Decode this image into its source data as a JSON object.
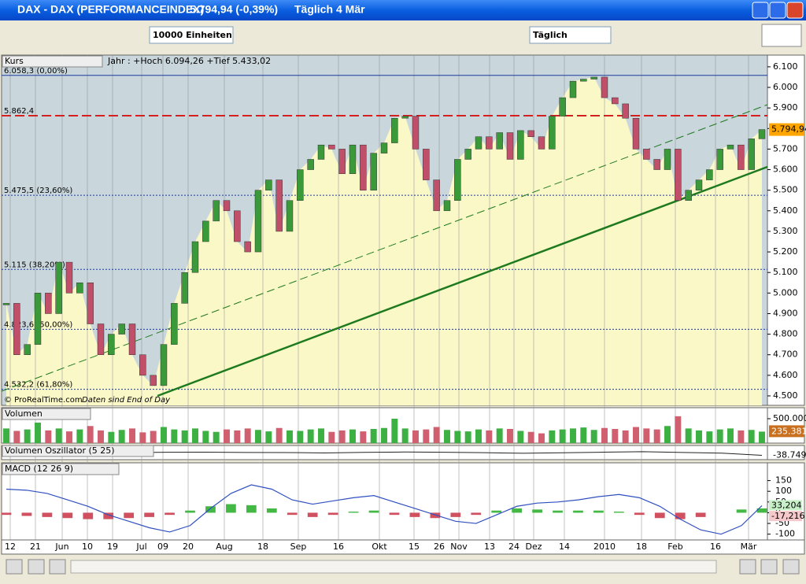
{
  "window": {
    "title": "DAX - DAX (PERFORMANCEINDEX)",
    "quote": "5.794,94 (-0,39%)",
    "interval": "Täglich",
    "date": "4 Mär"
  },
  "toolbar": {
    "units": "10000 Einheiten",
    "period": "Täglich"
  },
  "x_axis": {
    "labels": [
      "12",
      "21",
      "Jun",
      "10",
      "19",
      "Jul",
      "09",
      "20",
      "Aug",
      "18",
      "Sep",
      "16",
      "Okt",
      "15",
      "26",
      "Nov",
      "13",
      "24",
      "Dez",
      "14",
      "2010",
      "18",
      "Feb",
      "16",
      "Mär"
    ]
  },
  "chart_data": [
    {
      "type": "candlestick",
      "title": "Kurs",
      "subtitle": "Jahr : +Hoch 6.094,26 +Tief 5.433,02",
      "source": "© ProRealTime.com",
      "note": "Daten sind End of Day",
      "values": [
        4950,
        4700,
        4750,
        5000,
        4900,
        5150,
        5000,
        5050,
        4850,
        4700,
        4800,
        4850,
        4700,
        4600,
        4550,
        4750,
        4950,
        5100,
        5250,
        5350,
        5450,
        5400,
        5250,
        5200,
        5500,
        5550,
        5300,
        5450,
        5600,
        5650,
        5720,
        5700,
        5580,
        5720,
        5500,
        5680,
        5730,
        5850,
        5860,
        5700,
        5550,
        5400,
        5450,
        5650,
        5700,
        5760,
        5700,
        5780,
        5650,
        5790,
        5760,
        5700,
        5860,
        5950,
        6030,
        6040,
        6050,
        5950,
        5920,
        5850,
        5700,
        5650,
        5600,
        5700,
        5450,
        5500,
        5550,
        5600,
        5700,
        5720,
        5600,
        5750,
        5795
      ],
      "up_color": "#3a9a3a",
      "down_color": "#c0506a",
      "ylim": [
        4454,
        6157
      ],
      "yticks": [
        {
          "value": 4500,
          "label": "4.500"
        },
        {
          "value": 4600,
          "label": "4.600"
        },
        {
          "value": 4700,
          "label": "4.700"
        },
        {
          "value": 4800,
          "label": "4.800"
        },
        {
          "value": 4900,
          "label": "4.900"
        },
        {
          "value": 5000,
          "label": "5.000"
        },
        {
          "value": 5100,
          "label": "5.100"
        },
        {
          "value": 5200,
          "label": "5.200"
        },
        {
          "value": 5300,
          "label": "5.300"
        },
        {
          "value": 5400,
          "label": "5.400"
        },
        {
          "value": 5500,
          "label": "5.500"
        },
        {
          "value": 5600,
          "label": "5.600"
        },
        {
          "value": 5700,
          "label": "5.700"
        },
        {
          "value": 5800,
          "label": "5.800"
        },
        {
          "value": 5900,
          "label": "5.900"
        },
        {
          "value": 6000,
          "label": "6.000"
        },
        {
          "value": 6100,
          "label": "6.100"
        }
      ],
      "levels": [
        {
          "value": 6058.3,
          "label": "6.058,3 (0,00%)",
          "color": "#1a3aa0",
          "style": "solid"
        },
        {
          "value": 5862.4,
          "label": "5.862,4",
          "color": "#d42020",
          "style": "dashed"
        },
        {
          "value": 5475.5,
          "label": "5.475,5 (23,60%)",
          "color": "#1a3aa0",
          "style": "dotted"
        },
        {
          "value": 5115,
          "label": "5.115 (38,20%)",
          "color": "#1a3aa0",
          "style": "dotted"
        },
        {
          "value": 4823.6,
          "label": "4.823,6 (50,00%)",
          "color": "#1a3aa0",
          "style": "dotted"
        },
        {
          "value": 4532.2,
          "label": "4.532,2 (61,80%)",
          "color": "#1a3aa0",
          "style": "dotted"
        }
      ],
      "last": {
        "value": 5794.94,
        "label": "5.794,94"
      }
    },
    {
      "type": "bar",
      "title": "Volumen",
      "color": "#3cb043",
      "down_color": "#d06070",
      "values": [
        300000,
        250000,
        280000,
        420000,
        260000,
        300000,
        240000,
        280000,
        350000,
        260000,
        230000,
        270000,
        300000,
        220000,
        250000,
        330000,
        280000,
        260000,
        300000,
        250000,
        230000,
        280000,
        260000,
        300000,
        270000,
        240000,
        310000,
        260000,
        250000,
        280000,
        300000,
        230000,
        260000,
        280000,
        240000,
        290000,
        310000,
        500000,
        300000,
        260000,
        280000,
        330000,
        270000,
        250000,
        240000,
        280000,
        260000,
        300000,
        290000,
        250000,
        230000,
        200000,
        260000,
        280000,
        300000,
        320000,
        270000,
        310000,
        290000,
        260000,
        330000,
        300000,
        280000,
        350000,
        550000,
        300000,
        260000,
        240000,
        280000,
        300000,
        260000,
        270000,
        235381
      ],
      "ylim": [
        0,
        725000
      ],
      "yticks": [
        {
          "value": 500000,
          "label": "500.000"
        }
      ],
      "last": {
        "value": 235381,
        "label": "235.381"
      }
    },
    {
      "type": "line",
      "title": "Volumen Oszillator (5 25)",
      "color": "#222222",
      "values": [
        0,
        5,
        3,
        -2,
        4,
        6,
        2,
        0,
        -5,
        3,
        8,
        4,
        -2,
        -10,
        -3,
        5,
        12,
        2,
        -8,
        -39
      ],
      "ylim": [
        -100,
        100
      ],
      "last": {
        "value": -38.749,
        "label": "-38.749"
      }
    },
    {
      "type": "macd",
      "title": "MACD (12 26 9)",
      "color": "#3050c0",
      "hist_up": "#44b844",
      "hist_down": "#d05060",
      "values": [
        110,
        105,
        90,
        60,
        30,
        -10,
        -40,
        -70,
        -90,
        -60,
        20,
        90,
        130,
        110,
        60,
        40,
        55,
        70,
        80,
        50,
        20,
        -10,
        -40,
        -50,
        -10,
        30,
        45,
        50,
        60,
        75,
        85,
        70,
        30,
        -30,
        -80,
        -100,
        -60,
        33
      ],
      "histogram": [
        -10,
        -15,
        -20,
        -25,
        -30,
        -30,
        -25,
        -20,
        -10,
        10,
        30,
        40,
        35,
        20,
        -10,
        -20,
        -10,
        5,
        10,
        -10,
        -20,
        -25,
        -20,
        -10,
        10,
        20,
        15,
        10,
        10,
        10,
        5,
        -10,
        -25,
        -30,
        -20,
        0,
        15,
        20
      ],
      "ylim": [
        -127,
        233
      ],
      "yticks": [
        150,
        100,
        50,
        0,
        -50,
        -100
      ],
      "last_labels": [
        {
          "value": 33.204,
          "label": "33,204"
        },
        {
          "value": -17.216,
          "label": "-17,216"
        }
      ]
    }
  ]
}
